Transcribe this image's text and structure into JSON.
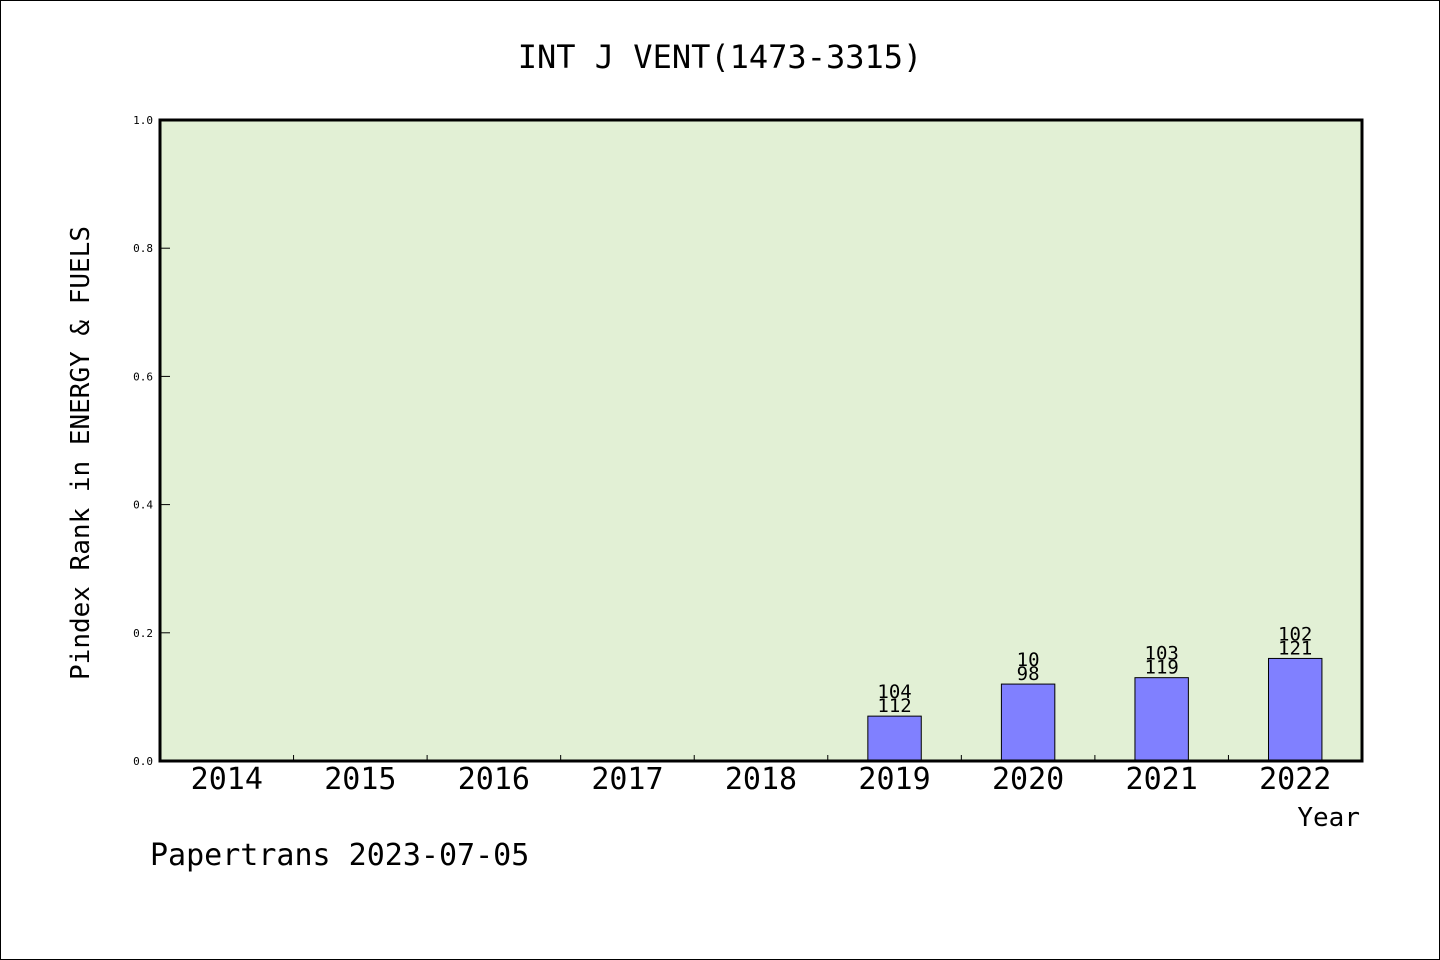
{
  "chart_data": {
    "type": "bar",
    "title": "INT J VENT(1473-3315)",
    "xlabel": "Year",
    "ylabel": "Pindex Rank in ENERGY & FUELS",
    "ylim": [
      0,
      1.0
    ],
    "yticks": [
      "0.0",
      "0.2",
      "0.4",
      "0.6",
      "0.8",
      "1.0"
    ],
    "categories": [
      "2014",
      "2015",
      "2016",
      "2017",
      "2018",
      "2019",
      "2020",
      "2021",
      "2022"
    ],
    "values": [
      null,
      null,
      null,
      null,
      null,
      0.07,
      0.12,
      0.13,
      0.16
    ],
    "bar_labels_top": [
      "",
      "",
      "",
      "",
      "",
      "104",
      "10",
      "103",
      "102"
    ],
    "bar_labels_bottom": [
      "",
      "",
      "",
      "",
      "",
      "112",
      "98",
      "119",
      "121"
    ],
    "grid": false,
    "colors": {
      "plot_background": "#e2f0d5",
      "bar_fill": "#8080ff",
      "bar_stroke": "#000000"
    }
  },
  "footer": {
    "text": "Papertrans 2023-07-05"
  }
}
